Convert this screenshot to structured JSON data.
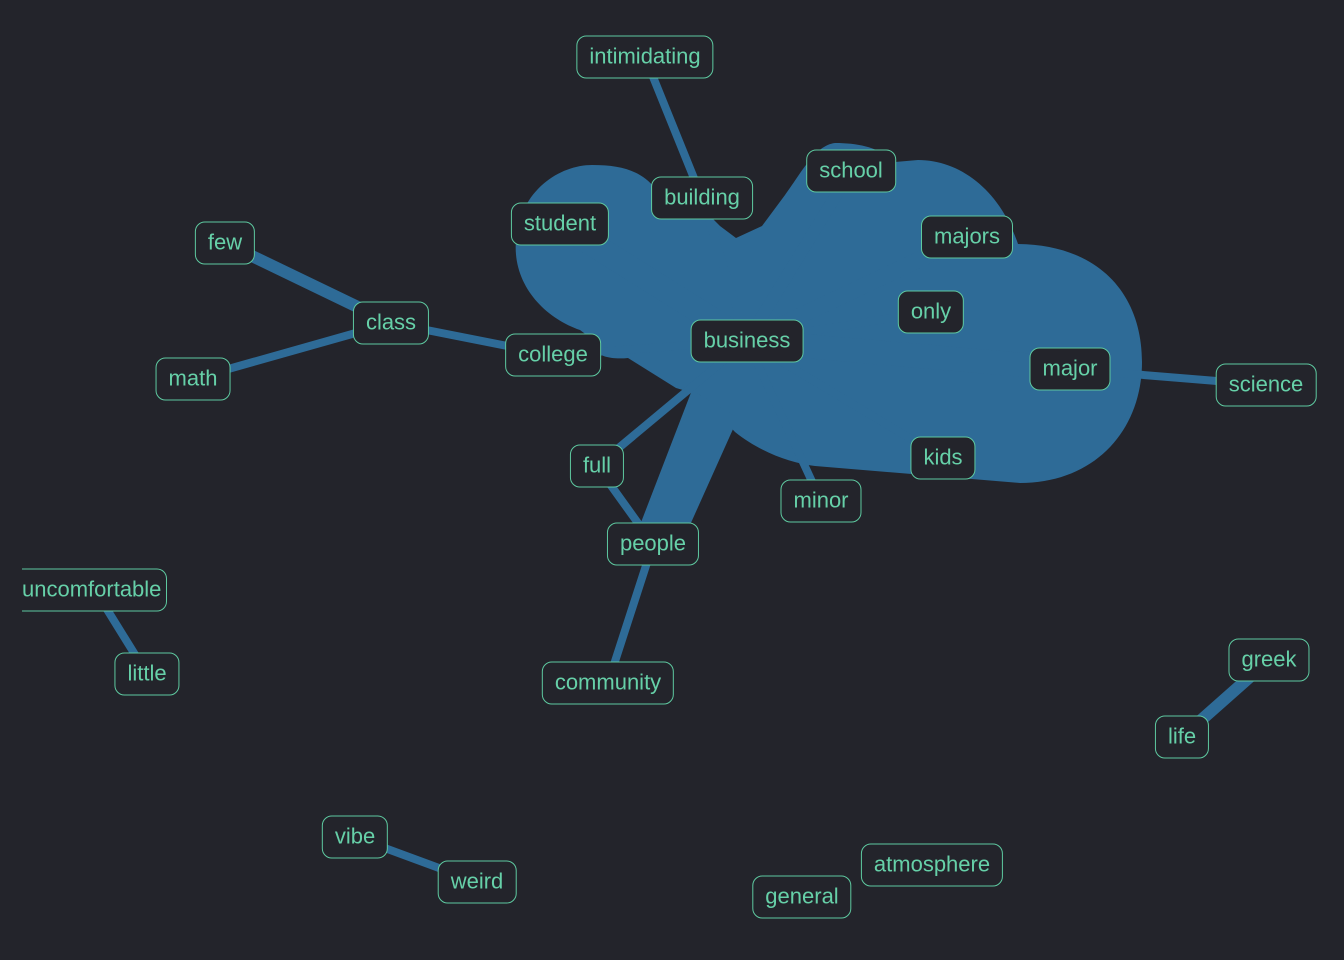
{
  "graph": {
    "edge_color": "#2e6b97",
    "background": "#23242b",
    "node_border_color": "#5ec9a0",
    "node_text_color": "#66d0a8",
    "nodes": {
      "intimidating": "intimidating",
      "building": "building",
      "school": "school",
      "student": "student",
      "majors": "majors",
      "few": "few",
      "class": "class",
      "math": "math",
      "college": "college",
      "business": "business",
      "only": "only",
      "major": "major",
      "science": "science",
      "full": "full",
      "kids": "kids",
      "minor": "minor",
      "people": "people",
      "uncomfortable": "uncomfortable",
      "little": "little",
      "community": "community",
      "greek": "greek",
      "life": "life",
      "vibe": "vibe",
      "weird": "weird",
      "atmosphere": "atmosphere",
      "general": "general"
    },
    "edges": [
      {
        "source": "intimidating",
        "target": "building",
        "weight": 1
      },
      {
        "source": "building",
        "target": "business",
        "weight": 1
      },
      {
        "source": "school",
        "target": "business",
        "weight": 2
      },
      {
        "source": "student",
        "target": "business",
        "weight": 5
      },
      {
        "source": "majors",
        "target": "business",
        "weight": 3
      },
      {
        "source": "few",
        "target": "class",
        "weight": 2
      },
      {
        "source": "math",
        "target": "class",
        "weight": 1
      },
      {
        "source": "class",
        "target": "college",
        "weight": 1
      },
      {
        "source": "college",
        "target": "business",
        "weight": 1
      },
      {
        "source": "only",
        "target": "business",
        "weight": 1
      },
      {
        "source": "major",
        "target": "business",
        "weight": 5
      },
      {
        "source": "major",
        "target": "science",
        "weight": 1
      },
      {
        "source": "full",
        "target": "business",
        "weight": 1
      },
      {
        "source": "full",
        "target": "people",
        "weight": 1
      },
      {
        "source": "kids",
        "target": "business",
        "weight": 1
      },
      {
        "source": "minor",
        "target": "business",
        "weight": 1
      },
      {
        "source": "people",
        "target": "business",
        "weight": 2
      },
      {
        "source": "people",
        "target": "community",
        "weight": 1
      },
      {
        "source": "uncomfortable",
        "target": "little",
        "weight": 1
      },
      {
        "source": "greek",
        "target": "life",
        "weight": 2
      },
      {
        "source": "vibe",
        "target": "weird",
        "weight": 1
      }
    ]
  }
}
